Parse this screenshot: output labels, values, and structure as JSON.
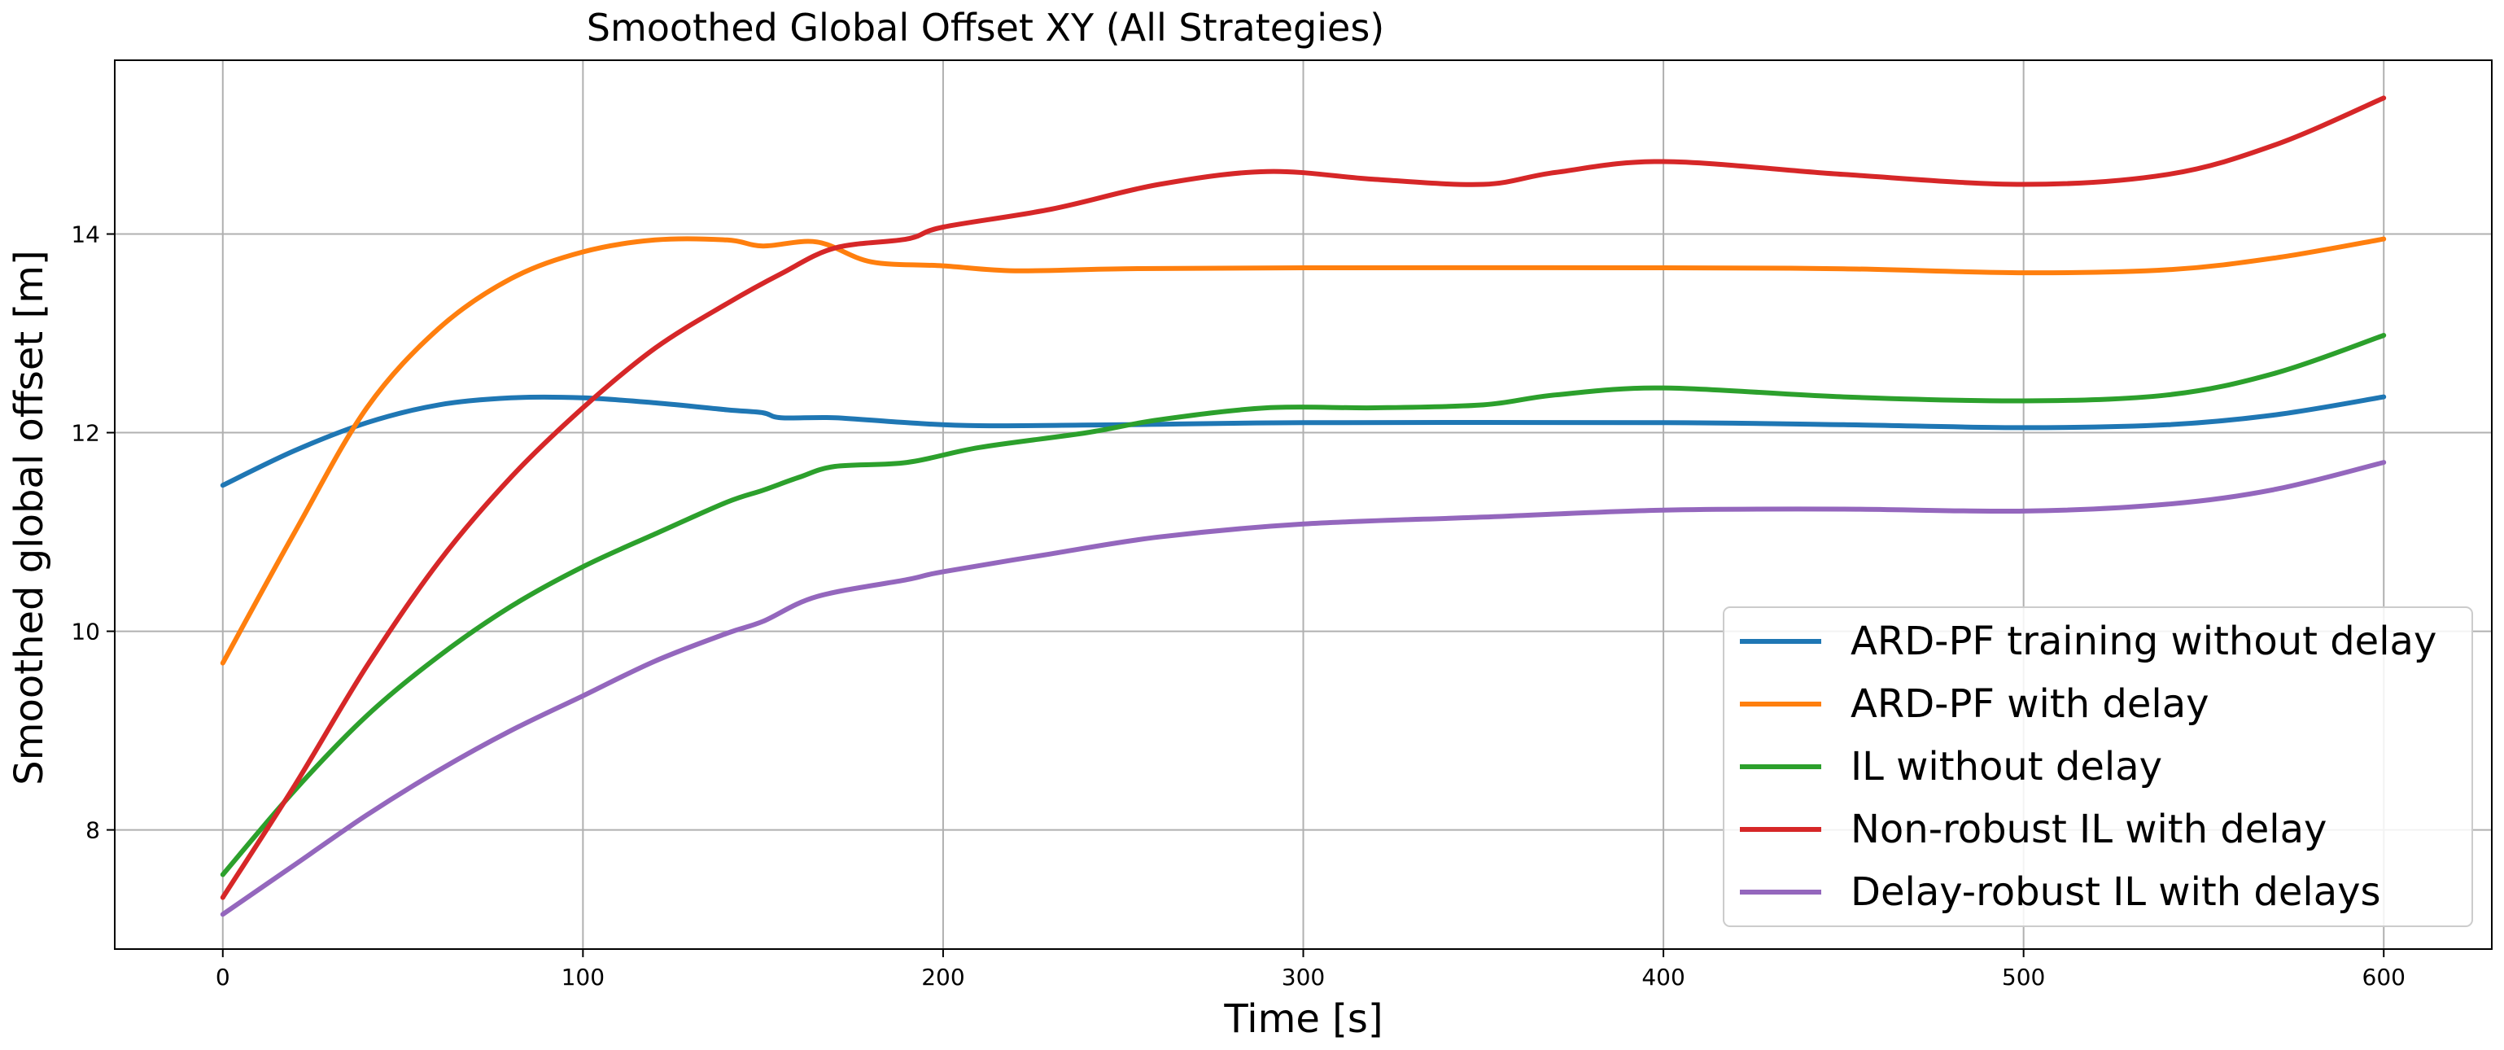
{
  "chart_data": {
    "type": "line",
    "title": "Smoothed Global Offset XY (All Strategies)",
    "xlabel": "Time [s]",
    "ylabel": "Smoothed global offset [m]",
    "xlim": [
      -30,
      630
    ],
    "ylim": [
      6.8,
      15.75
    ],
    "xticks": [
      0,
      100,
      200,
      300,
      400,
      500,
      600
    ],
    "yticks": [
      8,
      10,
      12,
      14
    ],
    "grid": true,
    "legend_position": "lower-right",
    "series": [
      {
        "name": "ARD-PF training without delay",
        "color": "#1f77b4",
        "points": [
          [
            0,
            11.47
          ],
          [
            20,
            11.82
          ],
          [
            40,
            12.1
          ],
          [
            60,
            12.28
          ],
          [
            80,
            12.35
          ],
          [
            100,
            12.35
          ],
          [
            120,
            12.3
          ],
          [
            140,
            12.23
          ],
          [
            150,
            12.2
          ],
          [
            155,
            12.15
          ],
          [
            170,
            12.15
          ],
          [
            190,
            12.1
          ],
          [
            210,
            12.07
          ],
          [
            250,
            12.08
          ],
          [
            300,
            12.1
          ],
          [
            400,
            12.1
          ],
          [
            450,
            12.08
          ],
          [
            500,
            12.05
          ],
          [
            540,
            12.08
          ],
          [
            570,
            12.18
          ],
          [
            600,
            12.36
          ]
        ]
      },
      {
        "name": "ARD-PF with delay",
        "color": "#ff7f0e",
        "points": [
          [
            0,
            9.68
          ],
          [
            20,
            11.0
          ],
          [
            40,
            12.25
          ],
          [
            60,
            13.05
          ],
          [
            80,
            13.55
          ],
          [
            100,
            13.82
          ],
          [
            120,
            13.94
          ],
          [
            140,
            13.94
          ],
          [
            150,
            13.88
          ],
          [
            165,
            13.92
          ],
          [
            180,
            13.72
          ],
          [
            200,
            13.68
          ],
          [
            220,
            13.63
          ],
          [
            250,
            13.65
          ],
          [
            300,
            13.66
          ],
          [
            400,
            13.66
          ],
          [
            450,
            13.65
          ],
          [
            500,
            13.61
          ],
          [
            540,
            13.64
          ],
          [
            570,
            13.76
          ],
          [
            600,
            13.95
          ]
        ]
      },
      {
        "name": "IL without delay",
        "color": "#2ca02c",
        "points": [
          [
            0,
            7.55
          ],
          [
            20,
            8.4
          ],
          [
            40,
            9.15
          ],
          [
            60,
            9.75
          ],
          [
            80,
            10.25
          ],
          [
            100,
            10.65
          ],
          [
            120,
            10.98
          ],
          [
            140,
            11.3
          ],
          [
            150,
            11.42
          ],
          [
            160,
            11.55
          ],
          [
            170,
            11.66
          ],
          [
            190,
            11.7
          ],
          [
            210,
            11.85
          ],
          [
            240,
            12.0
          ],
          [
            260,
            12.13
          ],
          [
            290,
            12.25
          ],
          [
            320,
            12.25
          ],
          [
            350,
            12.28
          ],
          [
            370,
            12.38
          ],
          [
            400,
            12.45
          ],
          [
            450,
            12.36
          ],
          [
            500,
            12.32
          ],
          [
            540,
            12.38
          ],
          [
            570,
            12.6
          ],
          [
            600,
            12.98
          ]
        ]
      },
      {
        "name": "Non-robust IL with delay",
        "color": "#d62728",
        "points": [
          [
            0,
            7.32
          ],
          [
            20,
            8.45
          ],
          [
            40,
            9.65
          ],
          [
            60,
            10.7
          ],
          [
            80,
            11.55
          ],
          [
            100,
            12.25
          ],
          [
            120,
            12.85
          ],
          [
            140,
            13.3
          ],
          [
            155,
            13.6
          ],
          [
            170,
            13.86
          ],
          [
            190,
            13.95
          ],
          [
            200,
            14.07
          ],
          [
            230,
            14.25
          ],
          [
            260,
            14.5
          ],
          [
            290,
            14.63
          ],
          [
            320,
            14.55
          ],
          [
            350,
            14.5
          ],
          [
            370,
            14.62
          ],
          [
            400,
            14.73
          ],
          [
            450,
            14.6
          ],
          [
            500,
            14.5
          ],
          [
            540,
            14.6
          ],
          [
            570,
            14.9
          ],
          [
            600,
            15.37
          ]
        ]
      },
      {
        "name": "Delay-robust IL with delays",
        "color": "#9467bd",
        "points": [
          [
            0,
            7.15
          ],
          [
            20,
            7.65
          ],
          [
            40,
            8.15
          ],
          [
            60,
            8.6
          ],
          [
            80,
            9.0
          ],
          [
            100,
            9.35
          ],
          [
            120,
            9.7
          ],
          [
            140,
            9.98
          ],
          [
            150,
            10.1
          ],
          [
            165,
            10.35
          ],
          [
            190,
            10.52
          ],
          [
            200,
            10.6
          ],
          [
            230,
            10.78
          ],
          [
            260,
            10.95
          ],
          [
            300,
            11.08
          ],
          [
            350,
            11.15
          ],
          [
            400,
            11.22
          ],
          [
            450,
            11.23
          ],
          [
            500,
            11.21
          ],
          [
            540,
            11.28
          ],
          [
            570,
            11.43
          ],
          [
            600,
            11.7
          ]
        ]
      }
    ]
  }
}
